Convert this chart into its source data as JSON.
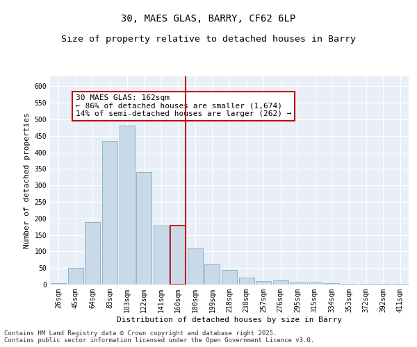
{
  "title": "30, MAES GLAS, BARRY, CF62 6LP",
  "subtitle": "Size of property relative to detached houses in Barry",
  "xlabel": "Distribution of detached houses by size in Barry",
  "ylabel": "Number of detached properties",
  "categories": [
    "26sqm",
    "45sqm",
    "64sqm",
    "83sqm",
    "103sqm",
    "122sqm",
    "141sqm",
    "160sqm",
    "180sqm",
    "199sqm",
    "218sqm",
    "238sqm",
    "257sqm",
    "276sqm",
    "295sqm",
    "315sqm",
    "334sqm",
    "353sqm",
    "372sqm",
    "392sqm",
    "411sqm"
  ],
  "values": [
    5,
    50,
    190,
    435,
    480,
    340,
    178,
    178,
    110,
    60,
    45,
    22,
    10,
    12,
    7,
    7,
    4,
    3,
    3,
    2,
    3
  ],
  "bar_color": "#c9d9e8",
  "bar_edge_color": "#8ab4cc",
  "highlight_bar_index": 7,
  "highlight_bar_edge_color": "#c00000",
  "vline_color": "#c00000",
  "annotation_text": "30 MAES GLAS: 162sqm\n← 86% of detached houses are smaller (1,674)\n14% of semi-detached houses are larger (262) →",
  "annotation_box_color": "#ffffff",
  "annotation_box_edge_color": "#c00000",
  "ylim": [
    0,
    630
  ],
  "yticks": [
    0,
    50,
    100,
    150,
    200,
    250,
    300,
    350,
    400,
    450,
    500,
    550,
    600
  ],
  "background_color": "#e8eff7",
  "grid_color": "#ffffff",
  "footer_text": "Contains HM Land Registry data © Crown copyright and database right 2025.\nContains public sector information licensed under the Open Government Licence v3.0.",
  "title_fontsize": 10,
  "axis_label_fontsize": 8,
  "tick_fontsize": 7,
  "annotation_fontsize": 8,
  "footer_fontsize": 6.5
}
